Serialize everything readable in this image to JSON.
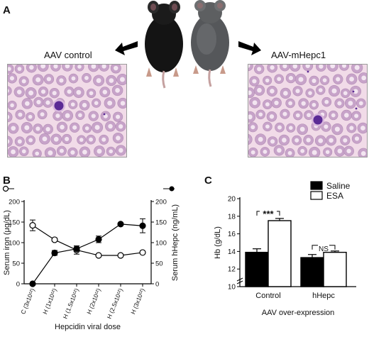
{
  "panel_labels": {
    "a": "A",
    "b": "B",
    "c": "C"
  },
  "panel_a": {
    "left_label": "AAV control",
    "right_label": "AAV-mHepc1",
    "colors": {
      "rbc": "#c7a3c9",
      "rbc_center": "#f3e6f1",
      "nucleus": "#5b2a95",
      "background": "#f1dbe8"
    }
  },
  "panel_b_chart": {
    "type": "line",
    "categories": [
      "C (3x10¹²)",
      "H (1x10¹²)",
      "H (1.5x10¹²)",
      "H (2x10¹²)",
      "H (2.5x10¹²)",
      "H (3x10¹²)"
    ],
    "xlabel": "Hepcidin viral dose",
    "ylabel_left": "Serum iron (μg/dL)",
    "ylabel_right": "Serum hHepc (ng/mL)",
    "ylim": [
      0,
      200
    ],
    "yticks": [
      0,
      50,
      100,
      150,
      200
    ],
    "series": [
      {
        "marker": "open",
        "axis": "left",
        "values": [
          142,
          107,
          82,
          69,
          69,
          76
        ],
        "errors": [
          13,
          4,
          10,
          3,
          2,
          3
        ]
      },
      {
        "marker": "filled",
        "axis": "right",
        "values": [
          0,
          75,
          85,
          108,
          145,
          141
        ],
        "errors": [
          0,
          6,
          7,
          8,
          3,
          17
        ]
      }
    ]
  },
  "panel_c_chart": {
    "type": "bar",
    "categories": [
      "Control",
      "hHepc"
    ],
    "xlabel": "AAV over-expression",
    "ylabel": "Hb (g/dL)",
    "ylim": [
      10,
      20
    ],
    "yticks": [
      10,
      12,
      14,
      16,
      18,
      20
    ],
    "series": [
      {
        "name": "Saline",
        "color": "#000000",
        "values": [
          13.9,
          13.3
        ],
        "errors": [
          0.4,
          0.35
        ]
      },
      {
        "name": "ESA",
        "color": "#ffffff",
        "values": [
          17.5,
          13.9
        ],
        "errors": [
          0.25,
          0.15
        ]
      }
    ],
    "annotations": [
      {
        "category": "Control",
        "text": "***"
      },
      {
        "category": "hHepc",
        "text": "NS"
      }
    ]
  }
}
